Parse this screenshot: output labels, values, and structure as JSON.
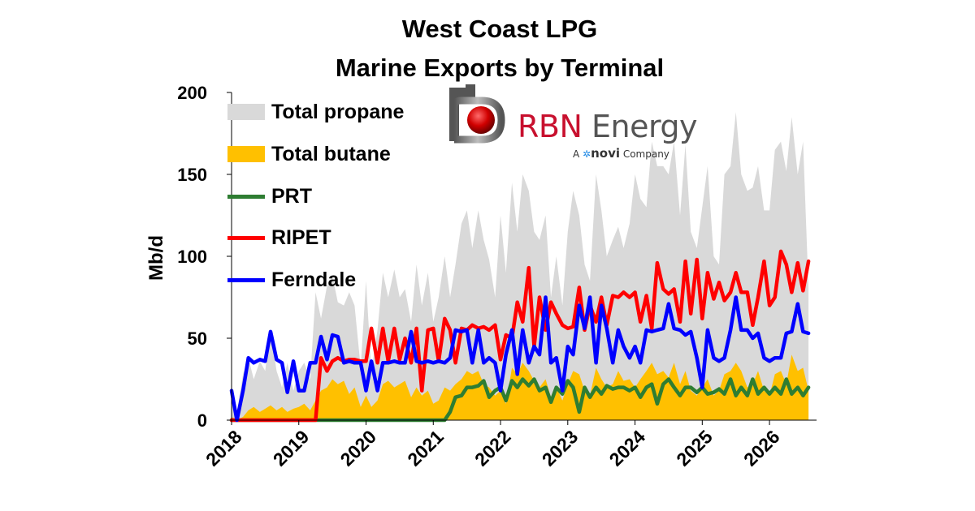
{
  "chart_data": {
    "type": "area",
    "title": "West Coast LPG",
    "subtitle": "Marine Exports by Terminal",
    "ylabel": "Mb/d",
    "xlabel": "",
    "ylim": [
      0,
      200
    ],
    "y_ticks": [
      "0",
      "50",
      "100",
      "150",
      "200"
    ],
    "x_ticks": [
      "2018",
      "2019",
      "2020",
      "2021",
      "2022",
      "2023",
      "2024",
      "2025",
      "2026"
    ],
    "xlim": [
      2018,
      2026.7
    ],
    "grid": false,
    "legend_position": "top-left",
    "series": [
      {
        "name": "Total propane",
        "style": "area",
        "color": "#d9d9d9",
        "x": [
          2018.0,
          2018.08,
          2018.17,
          2018.25,
          2018.33,
          2018.42,
          2018.5,
          2018.58,
          2018.67,
          2018.75,
          2018.83,
          2018.92,
          2019.0,
          2019.08,
          2019.17,
          2019.25,
          2019.33,
          2019.42,
          2019.5,
          2019.58,
          2019.67,
          2019.75,
          2019.83,
          2019.92,
          2020.0,
          2020.08,
          2020.17,
          2020.25,
          2020.33,
          2020.42,
          2020.5,
          2020.58,
          2020.67,
          2020.75,
          2020.83,
          2020.92,
          2021.0,
          2021.08,
          2021.17,
          2021.25,
          2021.33,
          2021.42,
          2021.5,
          2021.58,
          2021.67,
          2021.75,
          2021.83,
          2021.92,
          2022.0,
          2022.08,
          2022.17,
          2022.25,
          2022.33,
          2022.42,
          2022.5,
          2022.58,
          2022.67,
          2022.75,
          2022.83,
          2022.92,
          2023.0,
          2023.08,
          2023.17,
          2023.25,
          2023.33,
          2023.42,
          2023.5,
          2023.58,
          2023.67,
          2023.75,
          2023.83,
          2023.92,
          2024.0,
          2024.08,
          2024.17,
          2024.25,
          2024.33,
          2024.42,
          2024.5,
          2024.58,
          2024.67,
          2024.75,
          2024.83,
          2024.92,
          2025.0,
          2025.08,
          2025.17,
          2025.25,
          2025.33,
          2025.42,
          2025.5,
          2025.58,
          2025.67,
          2025.75,
          2025.83,
          2025.92,
          2026.0,
          2026.08,
          2026.17,
          2026.25,
          2026.33,
          2026.42,
          2026.5,
          2026.58
        ],
        "values": [
          20,
          5,
          28,
          38,
          25,
          36,
          30,
          55,
          30,
          20,
          35,
          18,
          30,
          35,
          25,
          78,
          62,
          82,
          88,
          72,
          70,
          78,
          70,
          32,
          85,
          30,
          55,
          90,
          75,
          92,
          75,
          80,
          60,
          95,
          70,
          90,
          60,
          75,
          100,
          75,
          95,
          120,
          128,
          105,
          128,
          110,
          98,
          75,
          125,
          90,
          145,
          115,
          150,
          140,
          115,
          110,
          125,
          75,
          100,
          70,
          115,
          140,
          125,
          95,
          85,
          150,
          128,
          100,
          110,
          118,
          105,
          120,
          150,
          135,
          130,
          170,
          155,
          155,
          150,
          170,
          125,
          168,
          115,
          105,
          130,
          155,
          100,
          95,
          150,
          155,
          188,
          150,
          140,
          142,
          155,
          128,
          128,
          165,
          170,
          152,
          185,
          150,
          170,
          80
        ]
      },
      {
        "name": "Total butane",
        "style": "area",
        "color": "#ffc000",
        "x": [
          2018.0,
          2018.08,
          2018.17,
          2018.25,
          2018.33,
          2018.42,
          2018.5,
          2018.58,
          2018.67,
          2018.75,
          2018.83,
          2018.92,
          2019.0,
          2019.08,
          2019.17,
          2019.25,
          2019.33,
          2019.42,
          2019.5,
          2019.58,
          2019.67,
          2019.75,
          2019.83,
          2019.92,
          2020.0,
          2020.08,
          2020.17,
          2020.25,
          2020.33,
          2020.42,
          2020.5,
          2020.58,
          2020.67,
          2020.75,
          2020.83,
          2020.92,
          2021.0,
          2021.08,
          2021.17,
          2021.25,
          2021.33,
          2021.42,
          2021.5,
          2021.58,
          2021.67,
          2021.75,
          2021.83,
          2021.92,
          2022.0,
          2022.08,
          2022.17,
          2022.25,
          2022.33,
          2022.42,
          2022.5,
          2022.58,
          2022.67,
          2022.75,
          2022.83,
          2022.92,
          2023.0,
          2023.08,
          2023.17,
          2023.25,
          2023.33,
          2023.42,
          2023.5,
          2023.58,
          2023.67,
          2023.75,
          2023.83,
          2023.92,
          2024.0,
          2024.08,
          2024.17,
          2024.25,
          2024.33,
          2024.42,
          2024.5,
          2024.58,
          2024.67,
          2024.75,
          2024.83,
          2024.92,
          2025.0,
          2025.08,
          2025.17,
          2025.25,
          2025.33,
          2025.42,
          2025.5,
          2025.58,
          2025.67,
          2025.75,
          2025.83,
          2025.92,
          2026.0,
          2026.08,
          2026.17,
          2026.25,
          2026.33,
          2026.42,
          2026.5,
          2026.58
        ],
        "values": [
          2,
          0,
          2,
          6,
          8,
          5,
          7,
          9,
          6,
          8,
          5,
          7,
          8,
          10,
          6,
          12,
          18,
          20,
          25,
          22,
          24,
          16,
          20,
          8,
          15,
          8,
          12,
          22,
          24,
          20,
          22,
          24,
          14,
          20,
          15,
          18,
          10,
          12,
          20,
          18,
          22,
          25,
          30,
          28,
          30,
          22,
          20,
          15,
          18,
          10,
          32,
          28,
          35,
          30,
          24,
          20,
          25,
          14,
          20,
          12,
          22,
          30,
          28,
          18,
          15,
          32,
          25,
          20,
          22,
          30,
          24,
          25,
          20,
          25,
          30,
          35,
          28,
          30,
          26,
          35,
          22,
          30,
          18,
          15,
          20,
          25,
          15,
          18,
          28,
          30,
          35,
          30,
          20,
          22,
          30,
          18,
          15,
          28,
          30,
          22,
          40,
          30,
          32,
          18
        ]
      },
      {
        "name": "PRT",
        "style": "line",
        "color": "#2e7d32",
        "x": [
          2018.0,
          2021.17,
          2021.25,
          2021.33,
          2021.42,
          2021.5,
          2021.58,
          2021.67,
          2021.75,
          2021.83,
          2021.92,
          2022.0,
          2022.08,
          2022.17,
          2022.25,
          2022.33,
          2022.42,
          2022.5,
          2022.58,
          2022.67,
          2022.75,
          2022.83,
          2022.92,
          2023.0,
          2023.08,
          2023.17,
          2023.25,
          2023.33,
          2023.42,
          2023.5,
          2023.58,
          2023.67,
          2023.75,
          2023.83,
          2023.92,
          2024.0,
          2024.08,
          2024.17,
          2024.25,
          2024.33,
          2024.42,
          2024.5,
          2024.58,
          2024.67,
          2024.75,
          2024.83,
          2024.92,
          2025.0,
          2025.08,
          2025.17,
          2025.25,
          2025.33,
          2025.42,
          2025.5,
          2025.58,
          2025.67,
          2025.75,
          2025.83,
          2025.92,
          2026.0,
          2026.08,
          2026.17,
          2026.25,
          2026.33,
          2026.42,
          2026.5,
          2026.58
        ],
        "values": [
          0,
          0,
          5,
          14,
          15,
          20,
          20,
          21,
          24,
          14,
          18,
          20,
          12,
          24,
          20,
          25,
          21,
          25,
          18,
          20,
          11,
          20,
          16,
          24,
          20,
          5,
          20,
          14,
          20,
          16,
          21,
          19,
          20,
          20,
          18,
          20,
          14,
          20,
          22,
          10,
          22,
          25,
          20,
          15,
          20,
          20,
          17,
          20,
          16,
          17,
          19,
          16,
          25,
          15,
          20,
          15,
          25,
          16,
          20,
          16,
          20,
          16,
          25,
          16,
          20,
          15,
          20
        ]
      },
      {
        "name": "RIPET",
        "style": "line",
        "color": "#ff0000",
        "x": [
          2018.0,
          2019.25,
          2019.33,
          2019.42,
          2019.5,
          2019.58,
          2019.67,
          2019.75,
          2019.83,
          2019.92,
          2020.0,
          2020.08,
          2020.17,
          2020.25,
          2020.33,
          2020.42,
          2020.5,
          2020.58,
          2020.67,
          2020.75,
          2020.83,
          2020.92,
          2021.0,
          2021.08,
          2021.17,
          2021.25,
          2021.33,
          2021.42,
          2021.5,
          2021.58,
          2021.67,
          2021.75,
          2021.83,
          2021.92,
          2022.0,
          2022.08,
          2022.17,
          2022.25,
          2022.33,
          2022.42,
          2022.5,
          2022.58,
          2022.67,
          2022.75,
          2022.83,
          2022.92,
          2023.0,
          2023.08,
          2023.17,
          2023.25,
          2023.33,
          2023.42,
          2023.5,
          2023.58,
          2023.67,
          2023.75,
          2023.83,
          2023.92,
          2024.0,
          2024.08,
          2024.17,
          2024.25,
          2024.33,
          2024.42,
          2024.5,
          2024.58,
          2024.67,
          2024.75,
          2024.83,
          2024.92,
          2025.0,
          2025.08,
          2025.17,
          2025.25,
          2025.33,
          2025.42,
          2025.5,
          2025.58,
          2025.67,
          2025.75,
          2025.83,
          2025.92,
          2026.0,
          2026.08,
          2026.17,
          2026.25,
          2026.33,
          2026.42,
          2026.5,
          2026.58
        ],
        "values": [
          0,
          0,
          38,
          30,
          36,
          38,
          36,
          37,
          37,
          36,
          36,
          56,
          35,
          56,
          36,
          56,
          37,
          50,
          35,
          56,
          18,
          55,
          56,
          36,
          62,
          55,
          35,
          56,
          55,
          58,
          56,
          57,
          55,
          58,
          37,
          52,
          50,
          72,
          60,
          93,
          45,
          75,
          55,
          72,
          65,
          58,
          56,
          57,
          81,
          55,
          70,
          60,
          75,
          58,
          76,
          75,
          78,
          75,
          78,
          60,
          76,
          56,
          96,
          80,
          77,
          80,
          60,
          97,
          65,
          98,
          62,
          90,
          74,
          84,
          73,
          78,
          90,
          78,
          78,
          58,
          75,
          97,
          70,
          75,
          103,
          95,
          78,
          96,
          79,
          97
        ]
      },
      {
        "name": "Ferndale",
        "style": "line",
        "color": "#0000ff",
        "x": [
          2018.0,
          2018.08,
          2018.17,
          2018.25,
          2018.33,
          2018.42,
          2018.5,
          2018.58,
          2018.67,
          2018.75,
          2018.83,
          2018.92,
          2019.0,
          2019.08,
          2019.17,
          2019.25,
          2019.33,
          2019.42,
          2019.5,
          2019.58,
          2019.67,
          2019.75,
          2019.83,
          2019.92,
          2020.0,
          2020.08,
          2020.17,
          2020.25,
          2020.33,
          2020.42,
          2020.5,
          2020.58,
          2020.67,
          2020.75,
          2020.83,
          2020.92,
          2021.0,
          2021.08,
          2021.17,
          2021.25,
          2021.33,
          2021.42,
          2021.5,
          2021.58,
          2021.67,
          2021.75,
          2021.83,
          2021.92,
          2022.0,
          2022.08,
          2022.17,
          2022.25,
          2022.33,
          2022.42,
          2022.5,
          2022.58,
          2022.67,
          2022.75,
          2022.83,
          2022.92,
          2023.0,
          2023.08,
          2023.17,
          2023.25,
          2023.33,
          2023.42,
          2023.5,
          2023.58,
          2023.67,
          2023.75,
          2023.83,
          2023.92,
          2024.0,
          2024.08,
          2024.17,
          2024.25,
          2024.33,
          2024.42,
          2024.5,
          2024.58,
          2024.67,
          2024.75,
          2024.83,
          2024.92,
          2025.0,
          2025.08,
          2025.17,
          2025.25,
          2025.33,
          2025.42,
          2025.5,
          2025.58,
          2025.67,
          2025.75,
          2025.83,
          2025.92,
          2026.0,
          2026.08,
          2026.17,
          2026.25,
          2026.33,
          2026.42,
          2026.5,
          2026.58
        ],
        "values": [
          18,
          0,
          18,
          38,
          35,
          37,
          36,
          54,
          37,
          35,
          17,
          36,
          18,
          18,
          35,
          35,
          51,
          37,
          52,
          51,
          35,
          36,
          35,
          35,
          18,
          36,
          18,
          35,
          35,
          36,
          35,
          35,
          54,
          36,
          35,
          36,
          35,
          36,
          35,
          38,
          55,
          54,
          55,
          35,
          55,
          35,
          38,
          35,
          18,
          40,
          55,
          28,
          55,
          35,
          45,
          40,
          75,
          35,
          38,
          18,
          45,
          40,
          70,
          56,
          75,
          35,
          70,
          56,
          35,
          55,
          45,
          38,
          45,
          35,
          55,
          54,
          55,
          56,
          71,
          56,
          55,
          52,
          54,
          38,
          20,
          55,
          38,
          36,
          38,
          55,
          75,
          55,
          55,
          50,
          53,
          38,
          36,
          38,
          38,
          53,
          54,
          71,
          54,
          53
        ]
      }
    ]
  },
  "logo": {
    "brand_rbn": "RBN",
    "brand_energy": " Energy",
    "tagline_pre": "A ",
    "tagline_brand": "novi",
    "tagline_post": " Company"
  }
}
